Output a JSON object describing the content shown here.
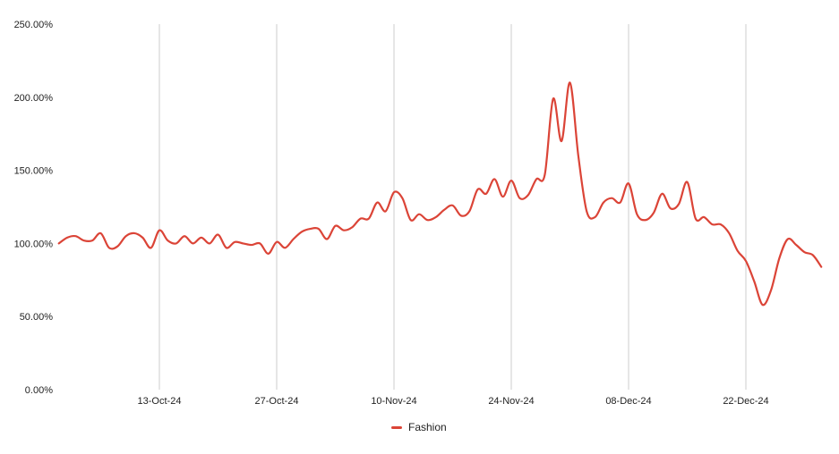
{
  "chart_data": {
    "type": "line",
    "x_tick_labels": [
      "13-Oct-24",
      "27-Oct-24",
      "10-Nov-24",
      "24-Nov-24",
      "08-Dec-24",
      "22-Dec-24"
    ],
    "y_tick_labels": [
      "0.00%",
      "50.00%",
      "100.00%",
      "150.00%",
      "200.00%",
      "250.00%"
    ],
    "ylim": [
      0,
      250
    ],
    "grid": "vertical lines at x ticks",
    "legend_position": "bottom-center",
    "series": [
      {
        "name": "Fashion",
        "color": "#db4437",
        "x": [
          "01-Oct-24",
          "02-Oct-24",
          "03-Oct-24",
          "04-Oct-24",
          "05-Oct-24",
          "06-Oct-24",
          "07-Oct-24",
          "08-Oct-24",
          "09-Oct-24",
          "10-Oct-24",
          "11-Oct-24",
          "12-Oct-24",
          "13-Oct-24",
          "14-Oct-24",
          "15-Oct-24",
          "16-Oct-24",
          "17-Oct-24",
          "18-Oct-24",
          "19-Oct-24",
          "20-Oct-24",
          "21-Oct-24",
          "22-Oct-24",
          "23-Oct-24",
          "24-Oct-24",
          "25-Oct-24",
          "26-Oct-24",
          "27-Oct-24",
          "28-Oct-24",
          "29-Oct-24",
          "30-Oct-24",
          "31-Oct-24",
          "01-Nov-24",
          "02-Nov-24",
          "03-Nov-24",
          "04-Nov-24",
          "05-Nov-24",
          "06-Nov-24",
          "07-Nov-24",
          "08-Nov-24",
          "09-Nov-24",
          "10-Nov-24",
          "11-Nov-24",
          "12-Nov-24",
          "13-Nov-24",
          "14-Nov-24",
          "15-Nov-24",
          "16-Nov-24",
          "17-Nov-24",
          "18-Nov-24",
          "19-Nov-24",
          "20-Nov-24",
          "21-Nov-24",
          "22-Nov-24",
          "23-Nov-24",
          "24-Nov-24",
          "25-Nov-24",
          "26-Nov-24",
          "27-Nov-24",
          "28-Nov-24",
          "29-Nov-24",
          "30-Nov-24",
          "01-Dec-24",
          "02-Dec-24",
          "03-Dec-24",
          "04-Dec-24",
          "05-Dec-24",
          "06-Dec-24",
          "07-Dec-24",
          "08-Dec-24",
          "09-Dec-24",
          "10-Dec-24",
          "11-Dec-24",
          "12-Dec-24",
          "13-Dec-24",
          "14-Dec-24",
          "15-Dec-24",
          "16-Dec-24",
          "17-Dec-24",
          "18-Dec-24",
          "19-Dec-24",
          "20-Dec-24",
          "21-Dec-24",
          "22-Dec-24",
          "23-Dec-24",
          "24-Dec-24",
          "25-Dec-24",
          "26-Dec-24",
          "27-Dec-24",
          "28-Dec-24",
          "29-Dec-24",
          "30-Dec-24",
          "31-Dec-24"
        ],
        "values": [
          100,
          104,
          105,
          102,
          102,
          107,
          97,
          98,
          105,
          107,
          104,
          97,
          109,
          102,
          100,
          105,
          100,
          104,
          100,
          106,
          97,
          101,
          100,
          99,
          100,
          93,
          101,
          97,
          103,
          108,
          110,
          110,
          103,
          112,
          109,
          111,
          117,
          117,
          128,
          122,
          135,
          131,
          116,
          120,
          116,
          118,
          123,
          126,
          119,
          122,
          137,
          134,
          144,
          132,
          143,
          131,
          133,
          144,
          147,
          199,
          170,
          210,
          160,
          122,
          118,
          128,
          131,
          128,
          141,
          120,
          116,
          121,
          134,
          124,
          127,
          142,
          117,
          118,
          113,
          113,
          107,
          95,
          88,
          74,
          58,
          68,
          90,
          103,
          99,
          94,
          92,
          84
        ]
      }
    ]
  }
}
